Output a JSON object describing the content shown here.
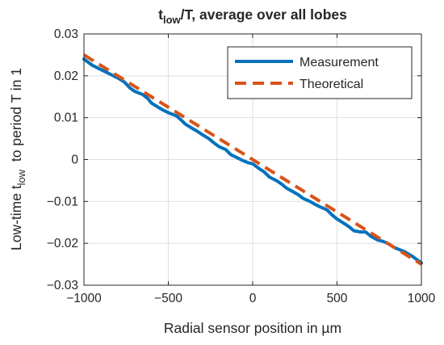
{
  "chart_data": {
    "type": "line",
    "title": "t_low/T, average over all lobes",
    "title_parts": {
      "a": "t",
      "b": "low",
      "c": "/T, average over all lobes"
    },
    "xlabel": "Radial sensor position in µm",
    "ylabel": "Low-time t_low to period T in 1",
    "ylabel_parts": {
      "a": "Low-time t",
      "b": "low",
      "c": "  to period T in 1"
    },
    "xlim": [
      -1000,
      1000
    ],
    "ylim": [
      -0.03,
      0.03
    ],
    "xticks": [
      -1000,
      -500,
      0,
      500,
      1000
    ],
    "xtick_labels": [
      "−1000",
      "−500",
      "0",
      "500",
      "1000"
    ],
    "yticks": [
      -0.03,
      -0.02,
      -0.01,
      0,
      0.01,
      0.02,
      0.03
    ],
    "ytick_labels": [
      "−0.03",
      "−0.02",
      "−0.01",
      "0",
      "0.01",
      "0.02",
      "0.03"
    ],
    "grid": true,
    "legend_position": "top-right",
    "series": [
      {
        "name": "Measurement",
        "color": "#0072BD",
        "style": "solid",
        "x": [
          -1000,
          -950,
          -900,
          -850,
          -800,
          -760,
          -730,
          -700,
          -650,
          -620,
          -600,
          -560,
          -530,
          -500,
          -450,
          -420,
          -400,
          -360,
          -330,
          -300,
          -260,
          -230,
          -200,
          -160,
          -130,
          -100,
          -60,
          -30,
          0,
          40,
          70,
          100,
          140,
          170,
          200,
          240,
          270,
          300,
          340,
          370,
          400,
          440,
          470,
          500,
          540,
          570,
          600,
          640,
          670,
          700,
          740,
          770,
          800,
          840,
          870,
          900,
          950,
          1000
        ],
        "y": [
          0.024,
          0.0225,
          0.0215,
          0.0205,
          0.0195,
          0.0185,
          0.0172,
          0.0163,
          0.0155,
          0.0145,
          0.0135,
          0.0125,
          0.0118,
          0.0112,
          0.0104,
          0.0093,
          0.0085,
          0.0075,
          0.0068,
          0.006,
          0.005,
          0.004,
          0.0031,
          0.0024,
          0.0012,
          0.0006,
          -0.0002,
          -0.0007,
          -0.001,
          -0.0022,
          -0.003,
          -0.0042,
          -0.005,
          -0.0058,
          -0.0068,
          -0.0077,
          -0.0084,
          -0.0093,
          -0.01,
          -0.0107,
          -0.0113,
          -0.012,
          -0.0132,
          -0.0142,
          -0.0152,
          -0.016,
          -0.017,
          -0.0173,
          -0.0173,
          -0.0183,
          -0.0192,
          -0.0195,
          -0.02,
          -0.021,
          -0.0215,
          -0.022,
          -0.0232,
          -0.0247
        ]
      },
      {
        "name": "Theoretical",
        "color": "#D95319",
        "style": "dashed",
        "x": [
          -1000,
          1000
        ],
        "y": [
          0.025,
          -0.025
        ]
      }
    ]
  }
}
